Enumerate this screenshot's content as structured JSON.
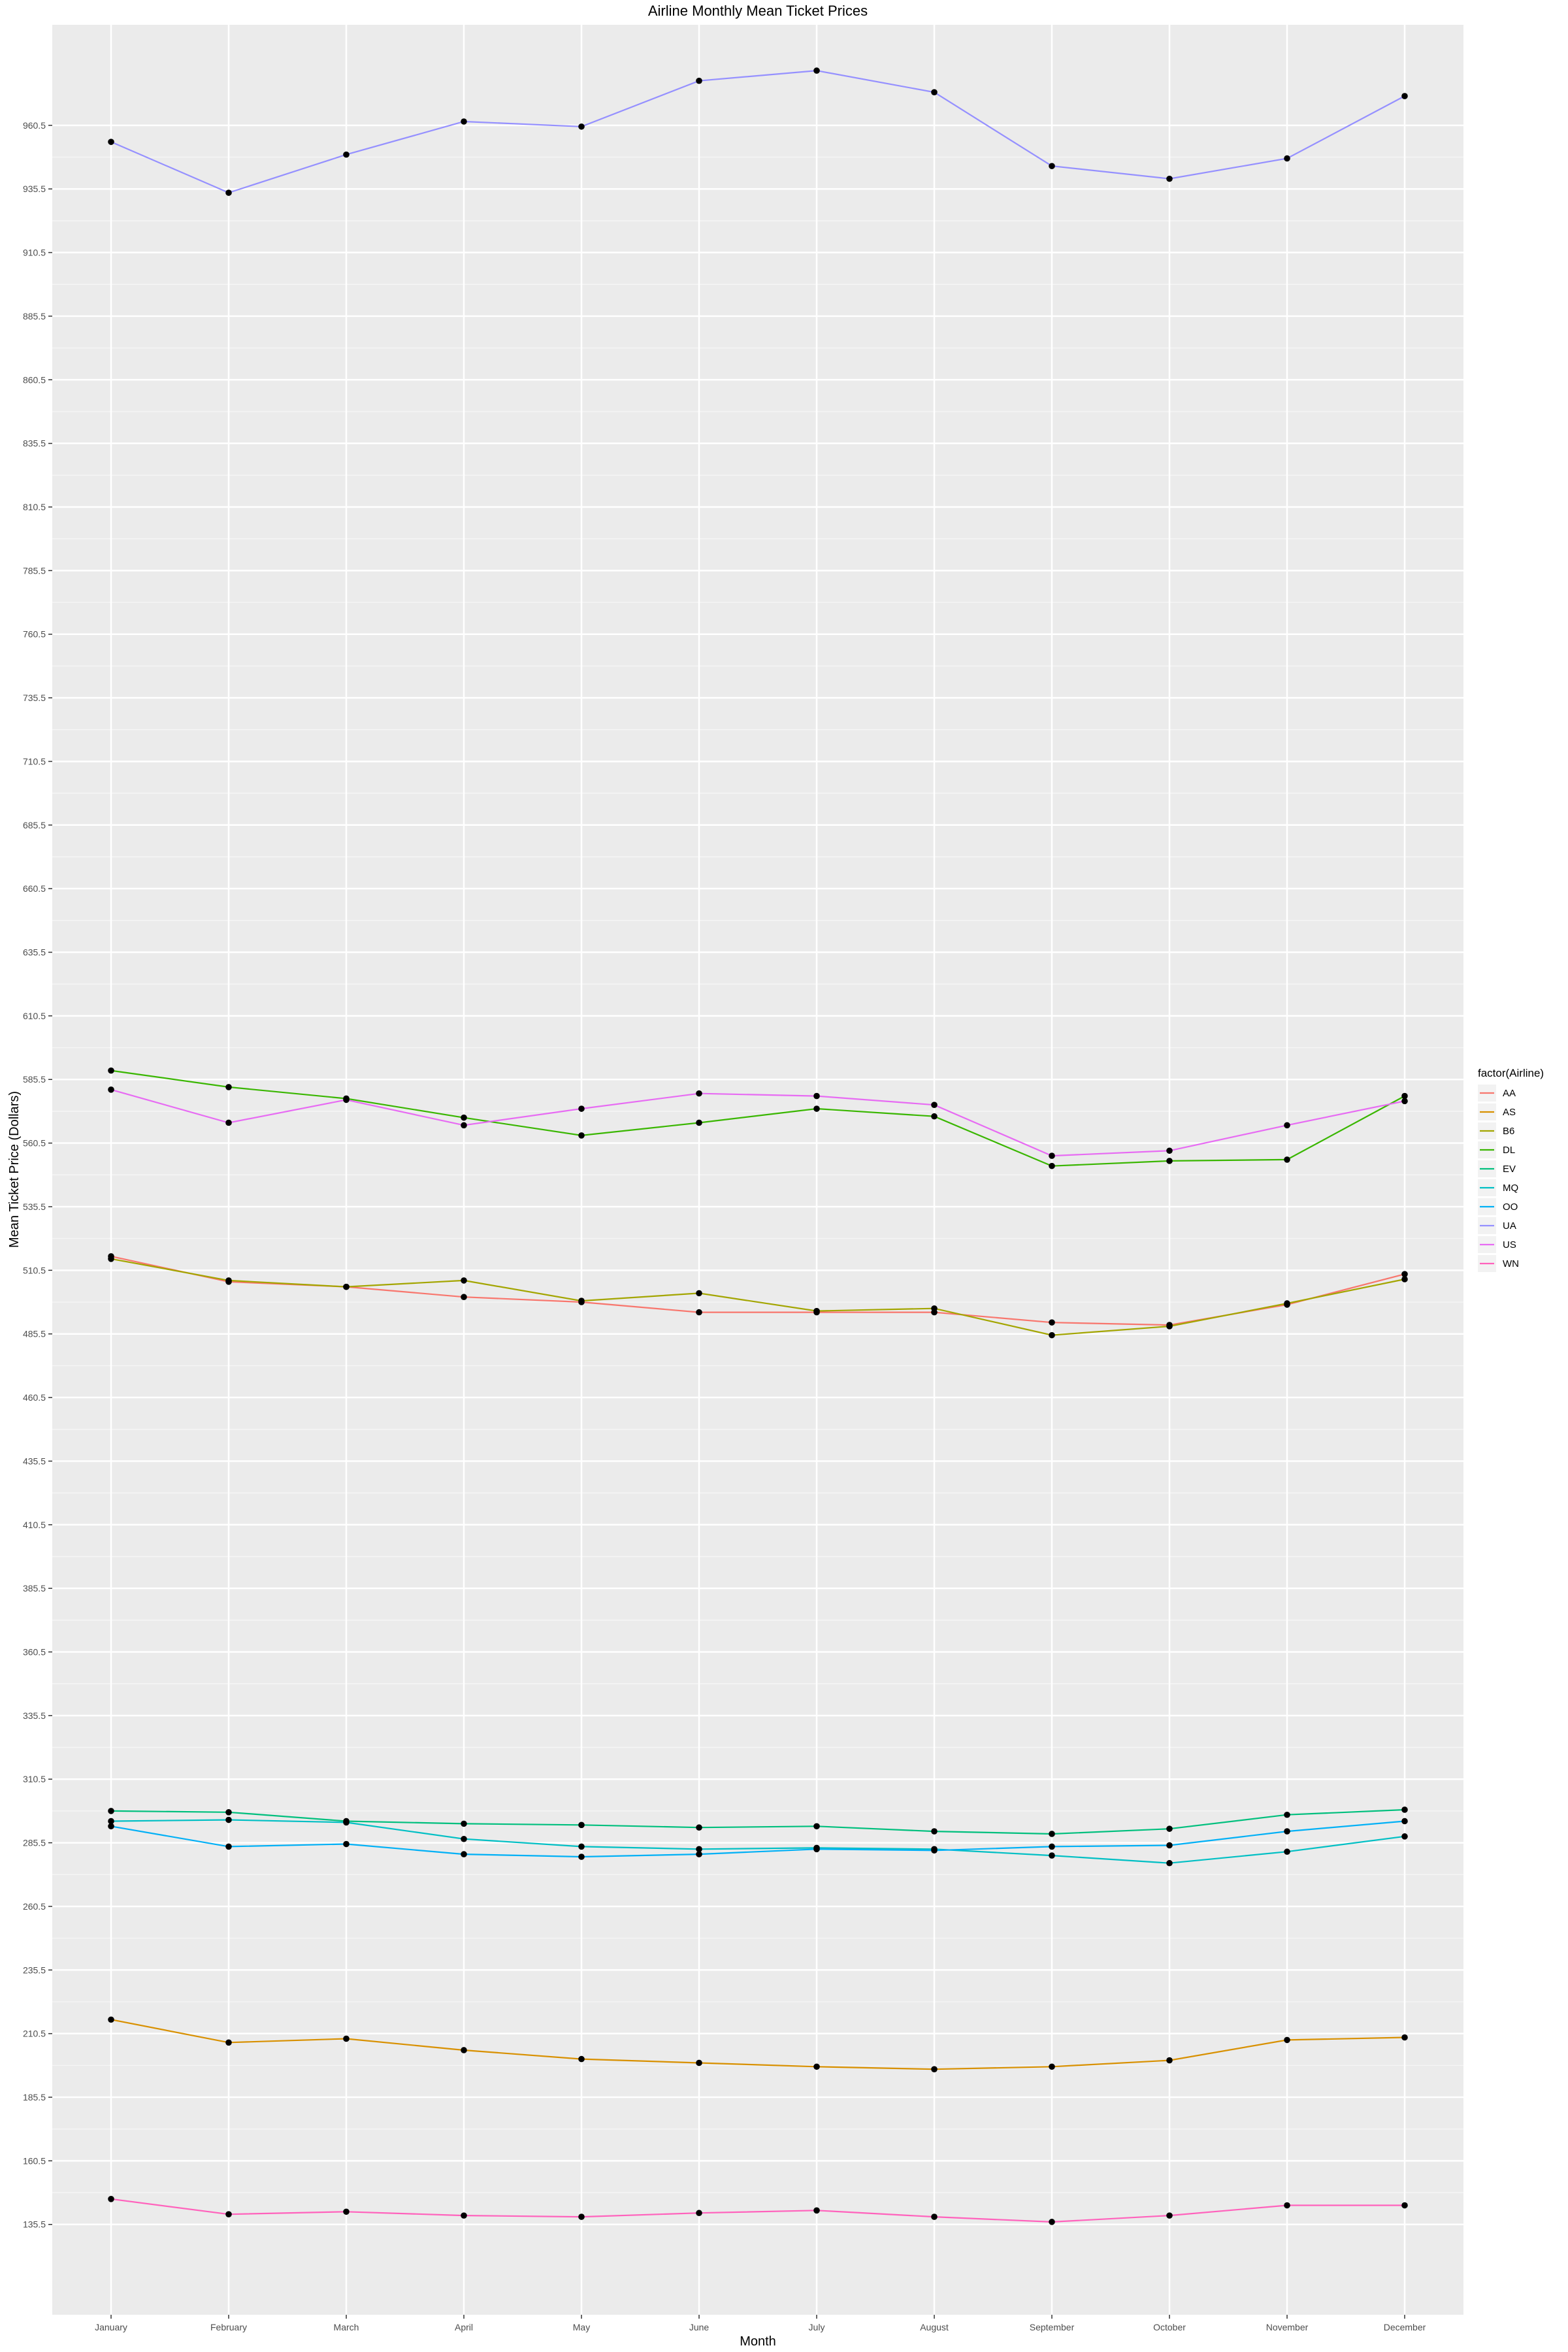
{
  "chart_data": {
    "type": "line",
    "title": "Airline Monthly Mean Ticket Prices",
    "xlabel": "Month",
    "ylabel": "Mean Ticket Price (Dollars)",
    "categories": [
      "January",
      "February",
      "March",
      "April",
      "May",
      "June",
      "July",
      "August",
      "September",
      "October",
      "November",
      "December"
    ],
    "y_ticks": [
      "135.5",
      "160.5",
      "185.5",
      "210.5",
      "235.5",
      "260.5",
      "285.5",
      "310.5",
      "335.5",
      "360.5",
      "385.5",
      "410.5",
      "435.5",
      "460.5",
      "485.5",
      "510.5",
      "535.5",
      "560.5",
      "585.5",
      "610.5",
      "635.5",
      "660.5",
      "685.5",
      "710.5",
      "735.5",
      "760.5",
      "785.5",
      "810.5",
      "835.5",
      "860.5",
      "885.5",
      "910.5",
      "935.5",
      "960.5"
    ],
    "ylim": [
      100,
      1000
    ],
    "grid": true,
    "legend": {
      "title": "factor(Airline)",
      "placement": "right"
    },
    "series": [
      {
        "name": "AA",
        "color": "#F8766D",
        "values": [
          516,
          506,
          504,
          500,
          498,
          494,
          494,
          494,
          490,
          489,
          497,
          509
        ]
      },
      {
        "name": "AS",
        "color": "#D89000",
        "values": [
          216,
          207,
          208.5,
          204,
          200.5,
          199,
          197.5,
          196.5,
          197.5,
          200,
          208,
          209
        ]
      },
      {
        "name": "B6",
        "color": "#A3A500",
        "values": [
          515,
          506.5,
          504,
          506.5,
          498.5,
          501.5,
          494.5,
          495.5,
          485,
          488.5,
          497.5,
          507
        ]
      },
      {
        "name": "DL",
        "color": "#39B600",
        "values": [
          589,
          582.5,
          578,
          570.5,
          563.5,
          568.5,
          574,
          571,
          551.5,
          553.5,
          554,
          579
        ]
      },
      {
        "name": "EV",
        "color": "#00BF7D",
        "values": [
          298,
          297.5,
          294,
          293,
          292.5,
          291.5,
          292,
          290,
          289,
          291,
          296.5,
          298.5
        ]
      },
      {
        "name": "MQ",
        "color": "#00BFC4",
        "values": [
          294,
          294.5,
          293.5,
          287,
          284,
          283,
          283.5,
          283,
          280.5,
          277.5,
          282,
          288
        ]
      },
      {
        "name": "OO",
        "color": "#00B0F6",
        "values": [
          292,
          284,
          285,
          281,
          280,
          281,
          283,
          282.5,
          284,
          284.5,
          290,
          294
        ]
      },
      {
        "name": "UA",
        "color": "#9590FF",
        "values": [
          954,
          934,
          949,
          962,
          960,
          978,
          982,
          973.5,
          944.5,
          939.5,
          947.5,
          972
        ]
      },
      {
        "name": "US",
        "color": "#E76BF3",
        "values": [
          581.5,
          568.5,
          577.5,
          567.5,
          574,
          580,
          579,
          575.5,
          555.5,
          557.5,
          567.5,
          577
        ]
      },
      {
        "name": "WN",
        "color": "#FF62BC",
        "values": [
          145.5,
          139.5,
          140.5,
          139,
          138.5,
          140,
          141,
          138.5,
          136.5,
          139,
          143,
          143
        ]
      }
    ]
  }
}
